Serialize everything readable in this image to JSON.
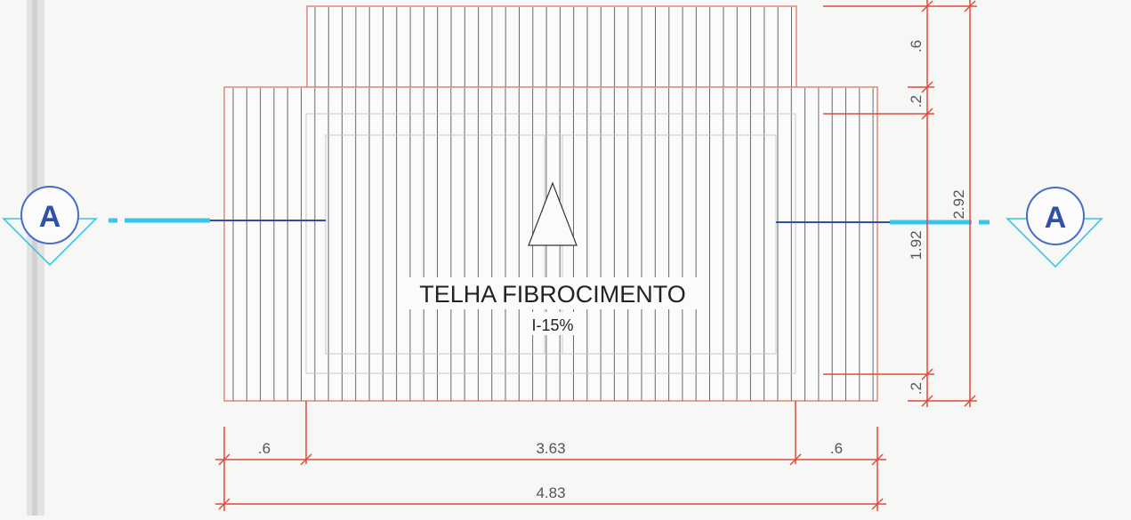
{
  "plan": {
    "title": "TELHA FIBROCIMENTO",
    "slope": "I-15%",
    "section_mark": "A"
  },
  "dimensions": {
    "bottom_left_overhang": ".6",
    "bottom_middle": "3.63",
    "bottom_right_overhang": ".6",
    "bottom_total": "4.83",
    "right_top": ".6",
    "right_upper_gap": ".2",
    "right_middle": "1.92",
    "right_lower_gap": ".2",
    "right_total": "2.92"
  },
  "colors": {
    "dimension_line": "#e04b3c",
    "hatch": "#6a6a6a",
    "section_line": "#3050a8",
    "section_accent": "#38c6e8",
    "section_symbol": "#4a6cc9"
  }
}
